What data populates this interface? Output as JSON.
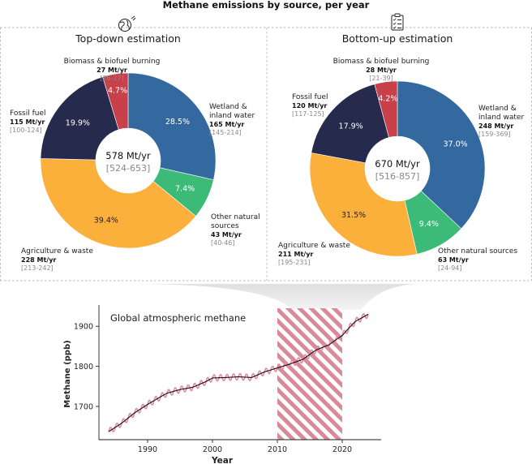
{
  "title": "Methane emissions by source, per year",
  "colors": {
    "wetland": "#33699e",
    "other_natural": "#3cba78",
    "agriculture": "#fbb03b",
    "fossil": "#262a4c",
    "biomass": "#c8404a",
    "line": "#111111",
    "line_pink": "#e889a6",
    "hatch": "#d98a99",
    "panel_border": "#b9b9b9"
  },
  "chart_data": [
    {
      "type": "pie",
      "title": "Top-down estimation",
      "icon": "globe-icon",
      "center_value": "578 Mt/yr",
      "center_range": "[524-653]",
      "slices": [
        {
          "key": "wetland",
          "label_lines": [
            "Wetland &",
            "inland water"
          ],
          "pct": 28.5,
          "pct_label": "28.5%",
          "value": "165 Mt/yr",
          "range": "[145-214]"
        },
        {
          "key": "other_natural",
          "label_lines": [
            "Other natural",
            "sources"
          ],
          "pct": 7.4,
          "pct_label": "7.4%",
          "value": "43 Mt/yr",
          "range": "[40-46]"
        },
        {
          "key": "agriculture",
          "label_lines": [
            "Agriculture & waste"
          ],
          "pct": 39.4,
          "pct_label": "39.4%",
          "value": "228 Mt/yr",
          "range": "[213-242]"
        },
        {
          "key": "fossil",
          "label_lines": [
            "Fossil fuel"
          ],
          "pct": 19.9,
          "pct_label": "19.9%",
          "value": "115 Mt/yr",
          "range": "[100-124]"
        },
        {
          "key": "biomass",
          "label_lines": [
            "Biomass & biofuel burning"
          ],
          "pct": 4.7,
          "pct_label": "4.7%",
          "value": "27 Mt/yr",
          "range": "[26-27]"
        }
      ]
    },
    {
      "type": "pie",
      "title": "Bottom-up estimation",
      "icon": "clipboard-checklist-icon",
      "center_value": "670 Mt/yr",
      "center_range": "[516-857]",
      "slices": [
        {
          "key": "wetland",
          "label_lines": [
            "Wetland &",
            "inland water"
          ],
          "pct": 37.0,
          "pct_label": "37.0%",
          "value": "248 Mt/yr",
          "range": "[159-369]"
        },
        {
          "key": "other_natural",
          "label_lines": [
            "Other natural sources"
          ],
          "pct": 9.4,
          "pct_label": "9.4%",
          "value": "63 Mt/yr",
          "range": "[24-94]"
        },
        {
          "key": "agriculture",
          "label_lines": [
            "Agriculture & waste"
          ],
          "pct": 31.5,
          "pct_label": "31.5%",
          "value": "211 Mt/yr",
          "range": "[195-231]"
        },
        {
          "key": "fossil",
          "label_lines": [
            "Fossil fuel"
          ],
          "pct": 17.9,
          "pct_label": "17.9%",
          "value": "120 Mt/yr",
          "range": "[117-125]"
        },
        {
          "key": "biomass",
          "label_lines": [
            "Biomass & biofuel burning"
          ],
          "pct": 4.2,
          "pct_label": "4.2%",
          "value": "28 Mt/yr",
          "range": "[21-39]"
        }
      ]
    },
    {
      "type": "line",
      "title": "Global atmospheric methane",
      "xlabel": "Year",
      "ylabel": "Methane (ppb)",
      "xlim": [
        1982.5,
        2026
      ],
      "ylim": [
        1617,
        1945
      ],
      "xticks": [
        1990,
        2000,
        2010,
        2020
      ],
      "yticks": [
        1700,
        1800,
        1900
      ],
      "highlight_range": [
        2010,
        2020
      ],
      "trend": [
        [
          1984,
          1637
        ],
        [
          1986,
          1658
        ],
        [
          1988,
          1684
        ],
        [
          1990,
          1705
        ],
        [
          1992,
          1724
        ],
        [
          1993,
          1733
        ],
        [
          1995,
          1742
        ],
        [
          1997,
          1748
        ],
        [
          1999,
          1762
        ],
        [
          2000,
          1771
        ],
        [
          2002,
          1772
        ],
        [
          2004,
          1774
        ],
        [
          2006,
          1772
        ],
        [
          2007,
          1779
        ],
        [
          2008,
          1786
        ],
        [
          2010,
          1796
        ],
        [
          2012,
          1806
        ],
        [
          2014,
          1818
        ],
        [
          2015,
          1830
        ],
        [
          2016,
          1841
        ],
        [
          2018,
          1854
        ],
        [
          2019,
          1866
        ],
        [
          2020,
          1877
        ],
        [
          2021,
          1895
        ],
        [
          2022,
          1912
        ],
        [
          2024,
          1930
        ]
      ],
      "seasonal_amplitude": 8
    }
  ]
}
